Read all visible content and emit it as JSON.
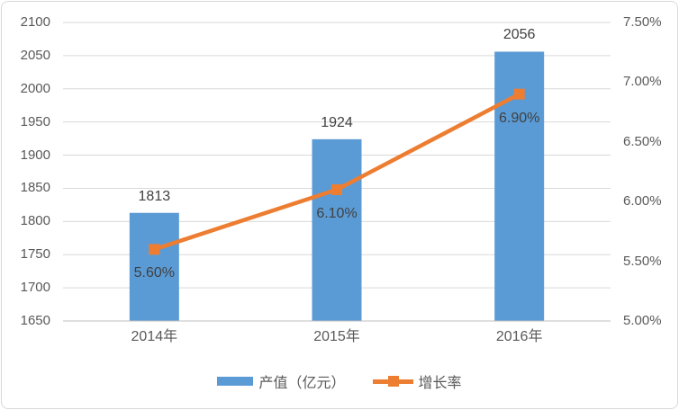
{
  "chart_data": {
    "type": "bar",
    "subtype": "bar+line-dual-axis",
    "title": "",
    "categories": [
      "2014年",
      "2015年",
      "2016年"
    ],
    "series": [
      {
        "name": "产值（亿元）",
        "type": "bar",
        "axis": "left",
        "values": [
          1813,
          1924,
          2056
        ],
        "labels": [
          "1813",
          "1924",
          "2056"
        ],
        "color": "#5b9bd5"
      },
      {
        "name": "增长率",
        "type": "line",
        "axis": "right",
        "values": [
          5.6,
          6.1,
          6.9
        ],
        "labels": [
          "5.60%",
          "6.10%",
          "6.90%"
        ],
        "color": "#ed7d31",
        "marker": "square"
      }
    ],
    "left_axis": {
      "min": 1650,
      "max": 2100,
      "step": 50,
      "ticks": [
        "2100",
        "2050",
        "2000",
        "1950",
        "1900",
        "1850",
        "1800",
        "1750",
        "1700",
        "1650"
      ]
    },
    "right_axis": {
      "min": 5.0,
      "max": 7.5,
      "step": 0.5,
      "ticks": [
        "7.50%",
        "7.00%",
        "6.50%",
        "6.00%",
        "5.50%",
        "5.00%"
      ]
    },
    "grid": true,
    "legend_position": "bottom"
  },
  "legend": {
    "items": [
      {
        "label": "产值（亿元）",
        "swatch": "bar",
        "color": "#5b9bd5"
      },
      {
        "label": "增长率",
        "swatch": "line-marker",
        "color": "#ed7d31"
      }
    ]
  },
  "colors": {
    "bar": "#5b9bd5",
    "line": "#ed7d31",
    "gridline": "#d9d9d9",
    "axis_line": "#bfbfbf",
    "tick_text": "#595959",
    "data_label_text": "#404040",
    "card_border": "#d9d9d9",
    "background": "#ffffff"
  }
}
